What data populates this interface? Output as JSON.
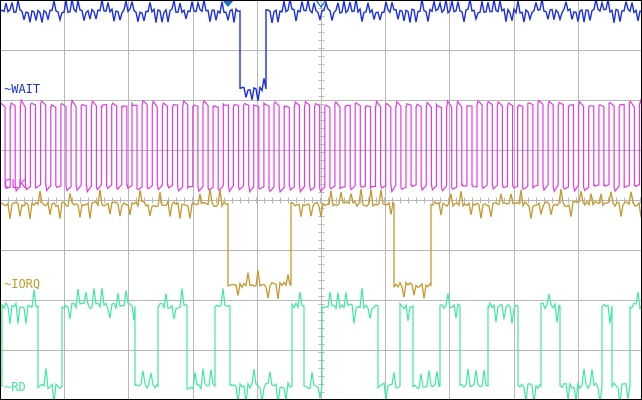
{
  "channels": [
    {
      "id": "wait",
      "label": "~WAIT",
      "color": "#1a2fe0"
    },
    {
      "id": "clk",
      "label": "CLK",
      "color": "#e23be6"
    },
    {
      "id": "iorq",
      "label": "~IORQ",
      "color": "#c39a2e"
    },
    {
      "id": "rd",
      "label": "~RD",
      "color": "#3fe8a0"
    }
  ],
  "markers": {
    "trigger_color": "#1a6fe0"
  },
  "grid": {
    "color": "#b8b8b8",
    "divisions_x": 10,
    "divisions_y": 8
  }
}
